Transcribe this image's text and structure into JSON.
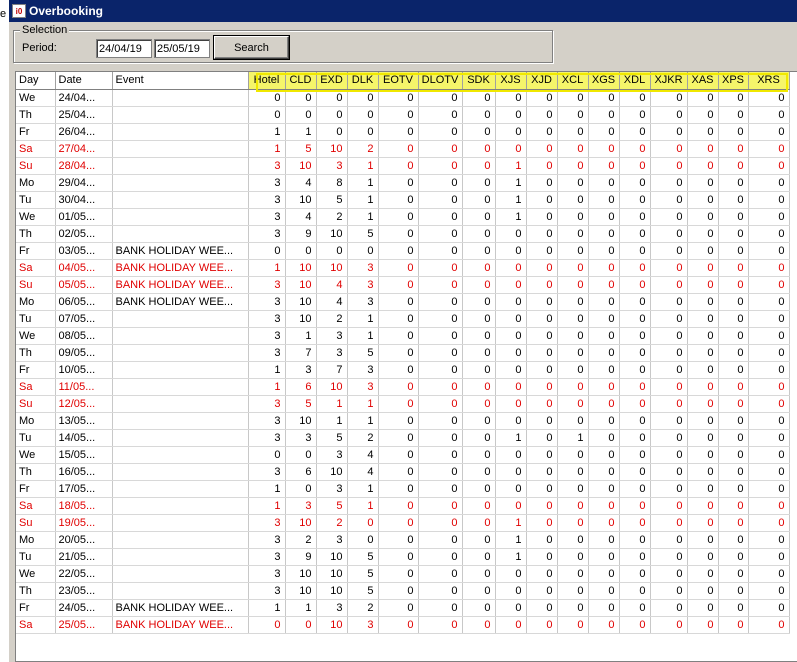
{
  "window": {
    "title": "Overbooking",
    "icon_text": "i0"
  },
  "selection": {
    "legend": "Selection",
    "period_label": "Period:",
    "from_date": "24/04/19",
    "to_date": "25/05/19",
    "search_label": "Search"
  },
  "grid": {
    "headers": {
      "day": "Day",
      "date": "Date",
      "event": "Event",
      "rooms": [
        "Hotel",
        "CLD",
        "EXD",
        "DLK",
        "EOTV",
        "DLOTV",
        "SDK",
        "XJS",
        "XJD",
        "XCL",
        "XGS",
        "XDL",
        "XJKR",
        "XAS",
        "XPS",
        "XRS"
      ]
    },
    "weekend_color": "#e00000",
    "highlight_color": "#f0e800",
    "rows": [
      {
        "day": "We",
        "date": "24/04...",
        "event": "",
        "v": [
          0,
          0,
          0,
          0,
          0,
          0,
          0,
          0,
          0,
          0,
          0,
          0,
          0,
          0,
          0,
          0
        ]
      },
      {
        "day": "Th",
        "date": "25/04...",
        "event": "",
        "v": [
          0,
          0,
          0,
          0,
          0,
          0,
          0,
          0,
          0,
          0,
          0,
          0,
          0,
          0,
          0,
          0
        ]
      },
      {
        "day": "Fr",
        "date": "26/04...",
        "event": "",
        "v": [
          1,
          1,
          0,
          0,
          0,
          0,
          0,
          0,
          0,
          0,
          0,
          0,
          0,
          0,
          0,
          0
        ]
      },
      {
        "day": "Sa",
        "date": "27/04...",
        "event": "",
        "v": [
          1,
          5,
          10,
          2,
          0,
          0,
          0,
          0,
          0,
          0,
          0,
          0,
          0,
          0,
          0,
          0
        ],
        "weekend": true
      },
      {
        "day": "Su",
        "date": "28/04...",
        "event": "",
        "v": [
          3,
          10,
          3,
          1,
          0,
          0,
          0,
          1,
          0,
          0,
          0,
          0,
          0,
          0,
          0,
          0
        ],
        "weekend": true
      },
      {
        "day": "Mo",
        "date": "29/04...",
        "event": "",
        "v": [
          3,
          4,
          8,
          1,
          0,
          0,
          0,
          1,
          0,
          0,
          0,
          0,
          0,
          0,
          0,
          0
        ]
      },
      {
        "day": "Tu",
        "date": "30/04...",
        "event": "",
        "v": [
          3,
          10,
          5,
          1,
          0,
          0,
          0,
          1,
          0,
          0,
          0,
          0,
          0,
          0,
          0,
          0
        ]
      },
      {
        "day": "We",
        "date": "01/05...",
        "event": "",
        "v": [
          3,
          4,
          2,
          1,
          0,
          0,
          0,
          1,
          0,
          0,
          0,
          0,
          0,
          0,
          0,
          0
        ]
      },
      {
        "day": "Th",
        "date": "02/05...",
        "event": "",
        "v": [
          3,
          9,
          10,
          5,
          0,
          0,
          0,
          0,
          0,
          0,
          0,
          0,
          0,
          0,
          0,
          0
        ]
      },
      {
        "day": "Fr",
        "date": "03/05...",
        "event": "BANK HOLIDAY WEE...",
        "v": [
          0,
          0,
          0,
          0,
          0,
          0,
          0,
          0,
          0,
          0,
          0,
          0,
          0,
          0,
          0,
          0
        ]
      },
      {
        "day": "Sa",
        "date": "04/05...",
        "event": "BANK HOLIDAY WEE...",
        "v": [
          1,
          10,
          10,
          3,
          0,
          0,
          0,
          0,
          0,
          0,
          0,
          0,
          0,
          0,
          0,
          0
        ],
        "weekend": true
      },
      {
        "day": "Su",
        "date": "05/05...",
        "event": "BANK HOLIDAY WEE...",
        "v": [
          3,
          10,
          4,
          3,
          0,
          0,
          0,
          0,
          0,
          0,
          0,
          0,
          0,
          0,
          0,
          0
        ],
        "weekend": true
      },
      {
        "day": "Mo",
        "date": "06/05...",
        "event": "BANK HOLIDAY WEE...",
        "v": [
          3,
          10,
          4,
          3,
          0,
          0,
          0,
          0,
          0,
          0,
          0,
          0,
          0,
          0,
          0,
          0
        ]
      },
      {
        "day": "Tu",
        "date": "07/05...",
        "event": "",
        "v": [
          3,
          10,
          2,
          1,
          0,
          0,
          0,
          0,
          0,
          0,
          0,
          0,
          0,
          0,
          0,
          0
        ]
      },
      {
        "day": "We",
        "date": "08/05...",
        "event": "",
        "v": [
          3,
          1,
          3,
          1,
          0,
          0,
          0,
          0,
          0,
          0,
          0,
          0,
          0,
          0,
          0,
          0
        ]
      },
      {
        "day": "Th",
        "date": "09/05...",
        "event": "",
        "v": [
          3,
          7,
          3,
          5,
          0,
          0,
          0,
          0,
          0,
          0,
          0,
          0,
          0,
          0,
          0,
          0
        ]
      },
      {
        "day": "Fr",
        "date": "10/05...",
        "event": "",
        "v": [
          1,
          3,
          7,
          3,
          0,
          0,
          0,
          0,
          0,
          0,
          0,
          0,
          0,
          0,
          0,
          0
        ]
      },
      {
        "day": "Sa",
        "date": "11/05...",
        "event": "",
        "v": [
          1,
          6,
          10,
          3,
          0,
          0,
          0,
          0,
          0,
          0,
          0,
          0,
          0,
          0,
          0,
          0
        ],
        "weekend": true
      },
      {
        "day": "Su",
        "date": "12/05...",
        "event": "",
        "v": [
          3,
          5,
          1,
          1,
          0,
          0,
          0,
          0,
          0,
          0,
          0,
          0,
          0,
          0,
          0,
          0
        ],
        "weekend": true
      },
      {
        "day": "Mo",
        "date": "13/05...",
        "event": "",
        "v": [
          3,
          10,
          1,
          1,
          0,
          0,
          0,
          0,
          0,
          0,
          0,
          0,
          0,
          0,
          0,
          0
        ]
      },
      {
        "day": "Tu",
        "date": "14/05...",
        "event": "",
        "v": [
          3,
          3,
          5,
          2,
          0,
          0,
          0,
          1,
          0,
          1,
          0,
          0,
          0,
          0,
          0,
          0
        ]
      },
      {
        "day": "We",
        "date": "15/05...",
        "event": "",
        "v": [
          0,
          0,
          3,
          4,
          0,
          0,
          0,
          0,
          0,
          0,
          0,
          0,
          0,
          0,
          0,
          0
        ]
      },
      {
        "day": "Th",
        "date": "16/05...",
        "event": "",
        "v": [
          3,
          6,
          10,
          4,
          0,
          0,
          0,
          0,
          0,
          0,
          0,
          0,
          0,
          0,
          0,
          0
        ]
      },
      {
        "day": "Fr",
        "date": "17/05...",
        "event": "",
        "v": [
          1,
          0,
          3,
          1,
          0,
          0,
          0,
          0,
          0,
          0,
          0,
          0,
          0,
          0,
          0,
          0
        ]
      },
      {
        "day": "Sa",
        "date": "18/05...",
        "event": "",
        "v": [
          1,
          3,
          5,
          1,
          0,
          0,
          0,
          0,
          0,
          0,
          0,
          0,
          0,
          0,
          0,
          0
        ],
        "weekend": true
      },
      {
        "day": "Su",
        "date": "19/05...",
        "event": "",
        "v": [
          3,
          10,
          2,
          0,
          0,
          0,
          0,
          1,
          0,
          0,
          0,
          0,
          0,
          0,
          0,
          0
        ],
        "weekend": true
      },
      {
        "day": "Mo",
        "date": "20/05...",
        "event": "",
        "v": [
          3,
          2,
          3,
          0,
          0,
          0,
          0,
          1,
          0,
          0,
          0,
          0,
          0,
          0,
          0,
          0
        ]
      },
      {
        "day": "Tu",
        "date": "21/05...",
        "event": "",
        "v": [
          3,
          9,
          10,
          5,
          0,
          0,
          0,
          1,
          0,
          0,
          0,
          0,
          0,
          0,
          0,
          0
        ]
      },
      {
        "day": "We",
        "date": "22/05...",
        "event": "",
        "v": [
          3,
          10,
          10,
          5,
          0,
          0,
          0,
          0,
          0,
          0,
          0,
          0,
          0,
          0,
          0,
          0
        ]
      },
      {
        "day": "Th",
        "date": "23/05...",
        "event": "",
        "v": [
          3,
          10,
          10,
          5,
          0,
          0,
          0,
          0,
          0,
          0,
          0,
          0,
          0,
          0,
          0,
          0
        ]
      },
      {
        "day": "Fr",
        "date": "24/05...",
        "event": "BANK HOLIDAY WEE...",
        "v": [
          1,
          1,
          3,
          2,
          0,
          0,
          0,
          0,
          0,
          0,
          0,
          0,
          0,
          0,
          0,
          0
        ]
      },
      {
        "day": "Sa",
        "date": "25/05...",
        "event": "BANK HOLIDAY WEE...",
        "v": [
          0,
          0,
          10,
          3,
          0,
          0,
          0,
          0,
          0,
          0,
          0,
          0,
          0,
          0,
          0,
          0
        ],
        "weekend": true
      }
    ]
  }
}
